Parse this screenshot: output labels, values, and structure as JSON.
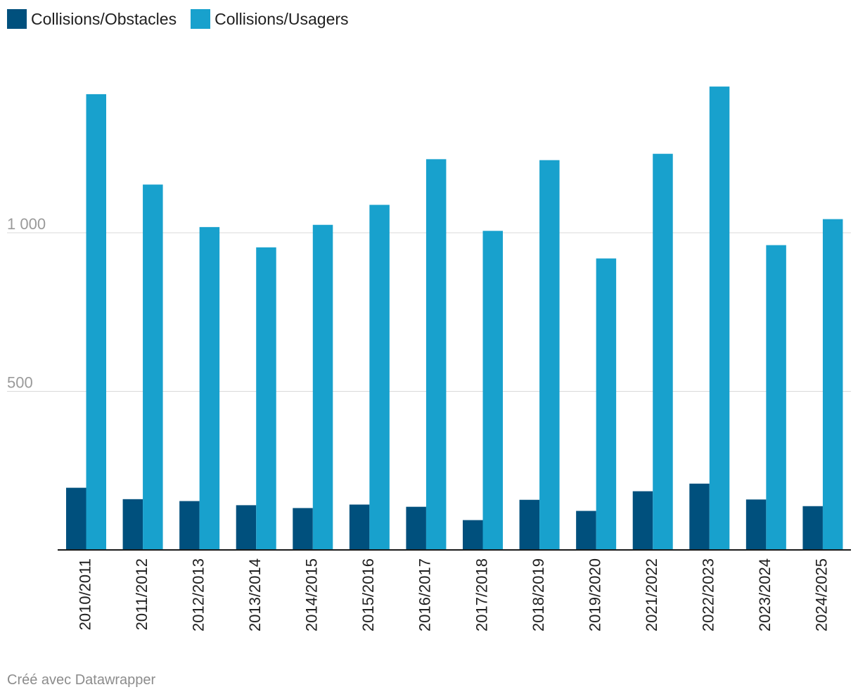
{
  "legend": {
    "items": [
      {
        "label": "Collisions/Obstacles",
        "color": "#00507d"
      },
      {
        "label": "Collisions/Usagers",
        "color": "#18a1cd"
      }
    ]
  },
  "credit": "Créé avec Datawrapper",
  "chart_data": {
    "type": "bar",
    "title": "",
    "xlabel": "",
    "ylabel": "",
    "ylim": [
      0,
      1500
    ],
    "yticks": [
      {
        "value": 500,
        "label": "500"
      },
      {
        "value": 1000,
        "label": "1 000"
      }
    ],
    "grid": true,
    "legend_position": "top-left",
    "categories": [
      "2010/2011",
      "2011/2012",
      "2012/2013",
      "2013/2014",
      "2014/2015",
      "2015/2016",
      "2016/2017",
      "2017/2018",
      "2018/2019",
      "2019/2020",
      "2021/2022",
      "2022/2023",
      "2023/2024",
      "2024/2025"
    ],
    "series": [
      {
        "name": "Collisions/Obstacles",
        "color": "#00507d",
        "values": [
          196,
          160,
          154,
          141,
          132,
          143,
          136,
          94,
          158,
          123,
          185,
          209,
          159,
          138
        ]
      },
      {
        "name": "Collisions/Usagers",
        "color": "#18a1cd",
        "values": [
          1437,
          1152,
          1018,
          954,
          1025,
          1088,
          1232,
          1006,
          1229,
          919,
          1249,
          1461,
          961,
          1043
        ]
      }
    ]
  }
}
